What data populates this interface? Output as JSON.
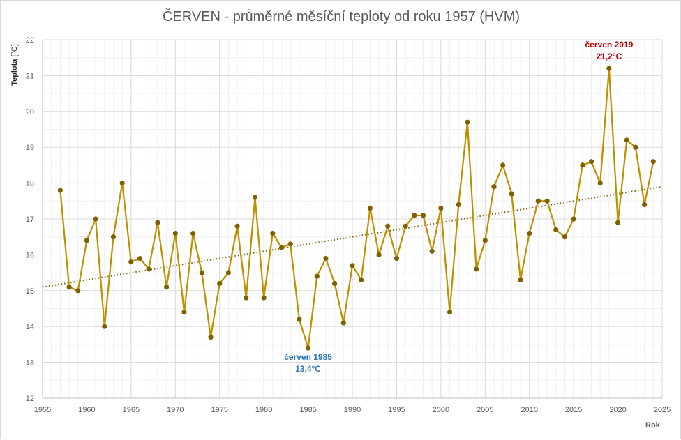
{
  "chart_data": {
    "type": "line",
    "title": "ČERVEN - průměrné měsíční teploty od roku 1957 (HVM)",
    "ylabel_name": "Teplota",
    "ylabel_unit": " [°C]",
    "xlabel": "Rok",
    "xlim": [
      1955,
      2025
    ],
    "ylim": [
      12,
      22
    ],
    "xticks": [
      1955,
      1960,
      1965,
      1970,
      1975,
      1980,
      1985,
      1990,
      1995,
      2000,
      2005,
      2010,
      2015,
      2020,
      2025
    ],
    "yticks": [
      12,
      13,
      14,
      15,
      16,
      17,
      18,
      19,
      20,
      21,
      22
    ],
    "grid": true,
    "colors": {
      "line": "#bf9000",
      "marker": "#7f6000",
      "trend": "#7f6000",
      "grid_major": "#d9d9d9",
      "grid_minor": "#f0f0f0",
      "annotation_max": "#c00000",
      "annotation_min": "#2e75b6"
    },
    "series": [
      {
        "x": [
          1957,
          1958,
          1959,
          1960,
          1961,
          1962,
          1963,
          1964,
          1965,
          1966,
          1967,
          1968,
          1969,
          1970,
          1971,
          1972,
          1973,
          1974,
          1975,
          1976,
          1977,
          1978,
          1979,
          1980,
          1981,
          1982,
          1983,
          1984,
          1985,
          1986,
          1987,
          1988,
          1989,
          1990,
          1991,
          1992,
          1993,
          1994,
          1995,
          1996,
          1997,
          1998,
          1999,
          2000,
          2001,
          2002,
          2003,
          2004,
          2005,
          2006,
          2007,
          2008,
          2009,
          2010,
          2011,
          2012,
          2013,
          2014,
          2015,
          2016,
          2017,
          2018,
          2019,
          2020,
          2021,
          2022,
          2023,
          2024
        ],
        "y": [
          17.8,
          15.1,
          15.0,
          16.4,
          17.0,
          14.0,
          16.5,
          18.0,
          15.8,
          15.9,
          15.6,
          16.9,
          15.1,
          16.6,
          14.4,
          16.6,
          15.5,
          13.7,
          15.2,
          15.5,
          16.8,
          14.8,
          17.6,
          14.8,
          16.6,
          16.2,
          16.3,
          14.2,
          13.4,
          15.4,
          15.9,
          15.2,
          14.1,
          15.7,
          15.3,
          17.3,
          16.0,
          16.8,
          15.9,
          16.8,
          17.1,
          17.1,
          16.1,
          17.3,
          14.4,
          17.4,
          19.7,
          15.6,
          16.4,
          17.9,
          18.5,
          17.7,
          15.3,
          16.6,
          17.5,
          17.5,
          16.7,
          16.5,
          17.0,
          18.5,
          18.6,
          18.0,
          21.2,
          16.9,
          19.2,
          19.0,
          17.4,
          18.6
        ]
      }
    ],
    "trendline": {
      "x": [
        1955,
        2025
      ],
      "y": [
        15.1,
        17.9
      ]
    },
    "annotations": [
      {
        "year": 2019,
        "line1": "červen 2019",
        "line2": "21,2°C",
        "kind": "max"
      },
      {
        "year": 1985,
        "line1": "červen 1985",
        "line2": "13,4°C",
        "kind": "min"
      }
    ]
  }
}
